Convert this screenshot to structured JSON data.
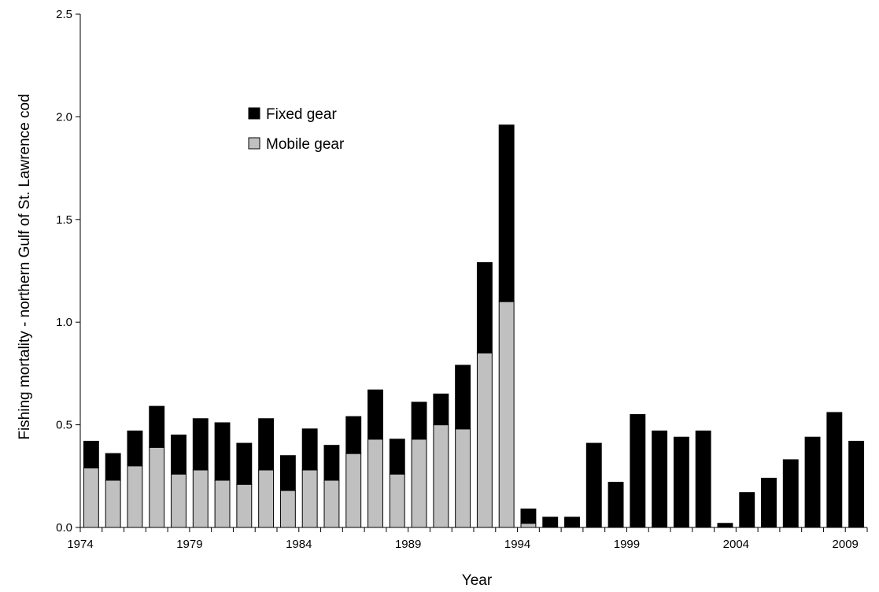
{
  "chart_data": {
    "type": "bar",
    "stacked": true,
    "title": "",
    "xlabel": "Year",
    "ylabel": "Fishing mortality - northern Gulf of St. Lawrence cod",
    "ylim": [
      0,
      2.5
    ],
    "yticks": [
      "0.0",
      "0.5",
      "1.0",
      "1.5",
      "2.0",
      "2.5"
    ],
    "xtick_labels": [
      "1974",
      "1979",
      "1984",
      "1989",
      "1994",
      "1999",
      "2004",
      "2009"
    ],
    "legend_position": "upper-left-inside",
    "grid": false,
    "categories": [
      "1974",
      "1975",
      "1976",
      "1977",
      "1978",
      "1979",
      "1980",
      "1981",
      "1982",
      "1983",
      "1984",
      "1985",
      "1986",
      "1987",
      "1988",
      "1989",
      "1990",
      "1991",
      "1992",
      "1993",
      "1994",
      "1995",
      "1996",
      "1997",
      "1998",
      "1999",
      "2000",
      "2001",
      "2002",
      "2003",
      "2004",
      "2005",
      "2006",
      "2007",
      "2008",
      "2009"
    ],
    "series": [
      {
        "name": "Mobile gear",
        "color": "#c0c0c0",
        "values": [
          0.29,
          0.23,
          0.3,
          0.39,
          0.26,
          0.28,
          0.23,
          0.21,
          0.28,
          0.18,
          0.28,
          0.23,
          0.36,
          0.43,
          0.26,
          0.43,
          0.5,
          0.48,
          0.85,
          1.1,
          0.02,
          0,
          0,
          0,
          0,
          0,
          0,
          0,
          0,
          0,
          0,
          0,
          0,
          0,
          0,
          0
        ]
      },
      {
        "name": "Fixed gear",
        "color": "#000000",
        "values": [
          0.13,
          0.13,
          0.17,
          0.2,
          0.19,
          0.25,
          0.28,
          0.2,
          0.25,
          0.17,
          0.2,
          0.17,
          0.18,
          0.24,
          0.17,
          0.18,
          0.15,
          0.31,
          0.44,
          0.86,
          0.07,
          0.05,
          0.05,
          0.41,
          0.22,
          0.55,
          0.47,
          0.44,
          0.47,
          0.02,
          0.17,
          0.24,
          0.33,
          0.44,
          0.56,
          0.42
        ]
      }
    ],
    "legend_order": [
      "Fixed gear",
      "Mobile gear"
    ]
  }
}
